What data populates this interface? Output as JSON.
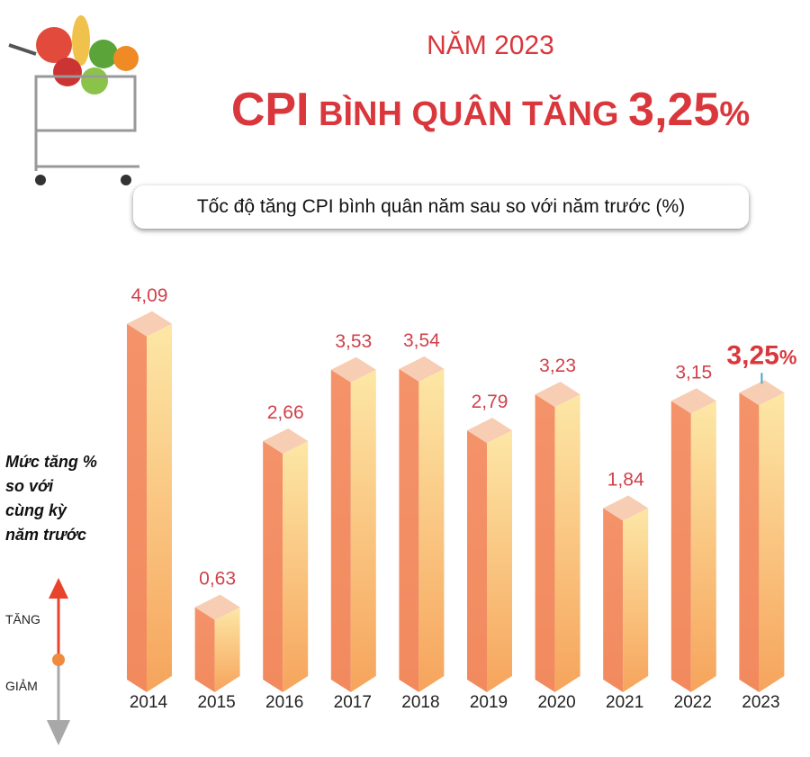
{
  "header": {
    "year_title": "NĂM 2023",
    "title_part1": "CPI",
    "title_part2": " BÌNH QUÂN TĂNG ",
    "title_value": "3,25",
    "title_unit": "%"
  },
  "legend": {
    "note_lines": [
      "Mức tăng %",
      "so với",
      "cùng kỳ",
      "năm trước"
    ],
    "increase": "TĂNG",
    "decrease": "GIẢM",
    "increase_color": "#e8432b",
    "decrease_color": "#a8a8a8"
  },
  "colors": {
    "accent": "#d9373c",
    "bar_front": "#f4926a",
    "bar_side": "#fbd38f",
    "bar_top": "#f7cdb4"
  },
  "chart_data": {
    "type": "bar",
    "title": "Tốc độ tăng CPI bình quân năm sau so với năm trước (%)",
    "categories": [
      "2014",
      "2015",
      "2016",
      "2017",
      "2018",
      "2019",
      "2020",
      "2021",
      "2022",
      "2023"
    ],
    "values": [
      4.09,
      0.63,
      2.66,
      3.53,
      3.54,
      2.79,
      3.23,
      1.84,
      3.15,
      3.25
    ],
    "labels": [
      "4,09",
      "0,63",
      "2,66",
      "3,53",
      "3,54",
      "2,79",
      "3,23",
      "1,84",
      "3,15",
      "3,25"
    ],
    "highlight": {
      "category": "2023",
      "label": "3,25",
      "unit": "%"
    },
    "grid": false
  }
}
